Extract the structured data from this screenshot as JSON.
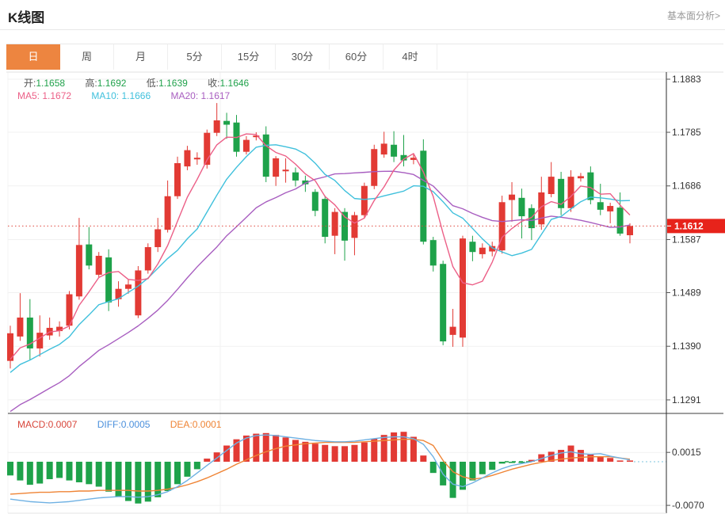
{
  "header": {
    "title": "K线图",
    "link": "基本面分析>"
  },
  "tabs": {
    "items": [
      {
        "label": "日",
        "active": true
      },
      {
        "label": "周",
        "active": false
      },
      {
        "label": "月",
        "active": false
      },
      {
        "label": "5分",
        "active": false
      },
      {
        "label": "15分",
        "active": false
      },
      {
        "label": "30分",
        "active": false
      },
      {
        "label": "60分",
        "active": false
      },
      {
        "label": "4时",
        "active": false
      }
    ]
  },
  "legend": {
    "ohlc": [
      {
        "label": "开:",
        "value": "1.1658"
      },
      {
        "label": "高:",
        "value": "1.1692"
      },
      {
        "label": "低:",
        "value": "1.1639"
      },
      {
        "label": "收:",
        "value": "1.1646"
      }
    ],
    "ma": [
      {
        "label": "MA5:",
        "value": "1.1672"
      },
      {
        "label": "MA10:",
        "value": "1.1666"
      },
      {
        "label": "MA20:",
        "value": "1.1617"
      }
    ]
  },
  "macd_legend": [
    {
      "label": "MACD:",
      "value": "0.0007"
    },
    {
      "label": "DIFF:",
      "value": "0.0005"
    },
    {
      "label": "DEA:",
      "value": "0.0001"
    }
  ],
  "colors": {
    "up": "#e23a34",
    "down": "#1ea24a",
    "ma5": "#ec5f87",
    "ma10": "#3fc0dc",
    "ma20": "#a85ec0",
    "diff_line": "#6fb1e3",
    "dea_line": "#ef8435",
    "price_tag_bg": "#e7231b",
    "price_dotted": "#e0483e",
    "tab_active": "#ed8540",
    "grid": "#f1f1f1",
    "axis": "#2b2b2b",
    "zero_dash_green": "#1ea24a",
    "zero_dash_cyan": "#a8d8ea"
  },
  "chart_data": {
    "type": "candlestick+macd",
    "main": {
      "y_axis_labels": [
        "1.1883",
        "1.1785",
        "1.1686",
        "1.1587",
        "1.1489",
        "1.1390",
        "1.1291"
      ],
      "price_tag": {
        "label": "1.1612",
        "value": 1.1612
      },
      "current_price_line": 1.1612,
      "candles_oclh": [
        [
          1.1363,
          1.1414,
          1.1349,
          1.1428
        ],
        [
          1.1408,
          1.1443,
          1.14,
          1.1488
        ],
        [
          1.1443,
          1.1386,
          1.1364,
          1.1477
        ],
        [
          1.1386,
          1.1415,
          1.1371,
          1.1447
        ],
        [
          1.141,
          1.1424,
          1.1402,
          1.1443
        ],
        [
          1.1418,
          1.1426,
          1.1408,
          1.1436
        ],
        [
          1.1428,
          1.1486,
          1.1421,
          1.1492
        ],
        [
          1.1482,
          1.1577,
          1.1476,
          1.1627
        ],
        [
          1.1578,
          1.1539,
          1.1532,
          1.161
        ],
        [
          1.1522,
          1.1557,
          1.1517,
          1.1564
        ],
        [
          1.1554,
          1.1471,
          1.1455,
          1.1569
        ],
        [
          1.1477,
          1.1496,
          1.1463,
          1.151
        ],
        [
          1.1496,
          1.1504,
          1.1487,
          1.1513
        ],
        [
          1.1447,
          1.153,
          1.1442,
          1.1538
        ],
        [
          1.153,
          1.1573,
          1.1524,
          1.158
        ],
        [
          1.1573,
          1.1606,
          1.1564,
          1.1627
        ],
        [
          1.1605,
          1.1667,
          1.16,
          1.1696
        ],
        [
          1.1667,
          1.1728,
          1.1662,
          1.174
        ],
        [
          1.1722,
          1.1752,
          1.1715,
          1.176
        ],
        [
          1.1735,
          1.1738,
          1.1725,
          1.1748
        ],
        [
          1.1725,
          1.1784,
          1.1718,
          1.179
        ],
        [
          1.1784,
          1.1807,
          1.1778,
          1.1839
        ],
        [
          1.1806,
          1.1799,
          1.1773,
          1.1821
        ],
        [
          1.1803,
          1.1749,
          1.174,
          1.1817
        ],
        [
          1.1749,
          1.1771,
          1.1744,
          1.1778
        ],
        [
          1.1776,
          1.1779,
          1.177,
          1.1785
        ],
        [
          1.1781,
          1.1703,
          1.1693,
          1.1796
        ],
        [
          1.1703,
          1.1737,
          1.1686,
          1.1741
        ],
        [
          1.1713,
          1.1716,
          1.1692,
          1.1737
        ],
        [
          1.1711,
          1.1696,
          1.1685,
          1.172
        ],
        [
          1.1696,
          1.1689,
          1.1675,
          1.1705
        ],
        [
          1.1675,
          1.164,
          1.163,
          1.168
        ],
        [
          1.1662,
          1.1592,
          1.158,
          1.1668
        ],
        [
          1.1594,
          1.1638,
          1.156,
          1.1645
        ],
        [
          1.1638,
          1.1585,
          1.1548,
          1.1645
        ],
        [
          1.159,
          1.1632,
          1.1558,
          1.1638
        ],
        [
          1.1632,
          1.1686,
          1.1626,
          1.1692
        ],
        [
          1.1686,
          1.1754,
          1.168,
          1.1762
        ],
        [
          1.1744,
          1.1764,
          1.1738,
          1.1786
        ],
        [
          1.1762,
          1.174,
          1.173,
          1.1787
        ],
        [
          1.1743,
          1.1733,
          1.1722,
          1.178
        ],
        [
          1.1734,
          1.1738,
          1.1726,
          1.1746
        ],
        [
          1.1751,
          1.1583,
          1.1578,
          1.1772
        ],
        [
          1.1586,
          1.1539,
          1.1528,
          1.1592
        ],
        [
          1.1542,
          1.1399,
          1.1392,
          1.1548
        ],
        [
          1.1411,
          1.1426,
          1.1389,
          1.1459
        ],
        [
          1.1406,
          1.1589,
          1.1389,
          1.1594
        ],
        [
          1.1583,
          1.1564,
          1.1547,
          1.1594
        ],
        [
          1.156,
          1.1572,
          1.1552,
          1.158
        ],
        [
          1.1565,
          1.1575,
          1.1556,
          1.1583
        ],
        [
          1.1567,
          1.1656,
          1.1561,
          1.1668
        ],
        [
          1.166,
          1.167,
          1.162,
          1.1693
        ],
        [
          1.1664,
          1.163,
          1.1589,
          1.1681
        ],
        [
          1.1645,
          1.1608,
          1.1586,
          1.1652
        ],
        [
          1.1615,
          1.1674,
          1.1605,
          1.1703
        ],
        [
          1.1671,
          1.1703,
          1.1665,
          1.173
        ],
        [
          1.1699,
          1.1645,
          1.1632,
          1.1712
        ],
        [
          1.1645,
          1.1703,
          1.1638,
          1.1715
        ],
        [
          1.17,
          1.1704,
          1.1694,
          1.171
        ],
        [
          1.1711,
          1.166,
          1.1652,
          1.1722
        ],
        [
          1.1656,
          1.1642,
          1.1632,
          1.169
        ],
        [
          1.1639,
          1.1649,
          1.1617,
          1.1655
        ],
        [
          1.1646,
          1.1598,
          1.1594,
          1.1674
        ],
        [
          1.1595,
          1.1612,
          1.158,
          1.1617
        ]
      ],
      "ma_seeds": {
        "ma5": [
          1.1338,
          1.135,
          1.136,
          1.1368
        ],
        "ma10": [
          1.1295,
          1.1305,
          1.1315,
          1.1325,
          1.1335,
          1.1345,
          1.1353,
          1.1361,
          1.1368
        ],
        "ma20": [
          1.119,
          1.1198,
          1.1206,
          1.1214,
          1.1222,
          1.123,
          1.1238,
          1.1246,
          1.1254,
          1.1262,
          1.127,
          1.1278,
          1.1286,
          1.1294,
          1.1302,
          1.131,
          1.1318,
          1.1326,
          1.1334
        ]
      }
    },
    "macd": {
      "y_axis_labels": [
        {
          "t": "0.0015",
          "v": 15
        },
        {
          "t": "-0.0070",
          "v": -70
        }
      ],
      "hist_1e4": [
        -22,
        -30,
        -37,
        -35,
        -28,
        -26,
        -30,
        -33,
        -36,
        -40,
        -48,
        -56,
        -63,
        -67,
        -64,
        -57,
        -47,
        -36,
        -24,
        -12,
        5,
        15,
        26,
        36,
        42,
        45,
        46,
        43,
        39,
        35,
        32,
        29,
        27,
        25,
        25,
        27,
        31,
        37,
        43,
        47,
        48,
        40,
        10,
        -18,
        -38,
        -58,
        -45,
        -30,
        -20,
        -13,
        -3,
        -2,
        -2,
        3,
        12,
        16,
        19,
        26,
        19,
        12,
        8,
        6,
        2,
        2
      ],
      "diff_1e4": [
        -60,
        -62,
        -64,
        -65,
        -66,
        -65,
        -64,
        -62,
        -60,
        -58,
        -57,
        -56,
        -56,
        -57,
        -56,
        -53,
        -48,
        -40,
        -30,
        -18,
        -6,
        6,
        18,
        30,
        38,
        42,
        43,
        42,
        40,
        38,
        36,
        34,
        33,
        32,
        32,
        33,
        35,
        37,
        39,
        40,
        40,
        37,
        28,
        8,
        -20,
        -36,
        -40,
        -34,
        -26,
        -18,
        -11,
        -6,
        -3,
        0,
        5,
        10,
        14,
        16,
        13,
        12,
        13,
        9,
        6,
        3
      ],
      "dea_1e4": [
        -52,
        -51,
        -50,
        -49,
        -49,
        -48,
        -48,
        -47,
        -47,
        -46,
        -46,
        -46,
        -46,
        -47,
        -47,
        -46,
        -44,
        -41,
        -37,
        -32,
        -26,
        -19,
        -12,
        -4,
        3,
        10,
        16,
        21,
        25,
        27,
        29,
        30,
        31,
        31,
        31,
        31,
        32,
        33,
        34,
        35,
        36,
        36,
        34,
        26,
        2,
        -16,
        -24,
        -28,
        -26,
        -22,
        -17,
        -12,
        -8,
        -4,
        -1,
        2,
        4,
        6,
        7,
        8,
        8,
        8,
        6,
        4
      ]
    }
  }
}
